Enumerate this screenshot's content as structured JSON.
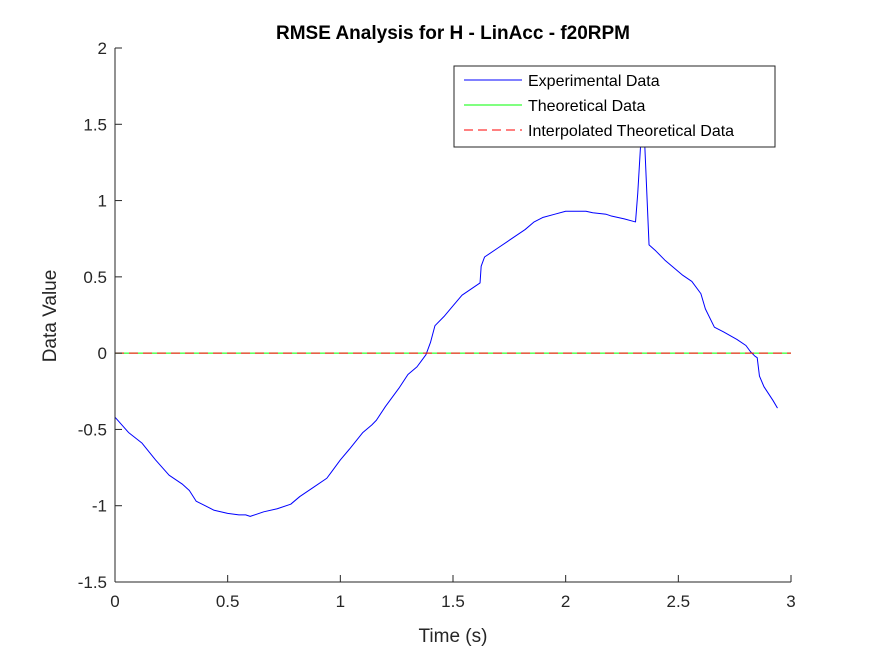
{
  "chart_data": {
    "type": "line",
    "title": "RMSE Analysis for H - LinAcc - f20RPM",
    "xlabel": "Time (s)",
    "ylabel": "Data Value",
    "xlim": [
      0,
      3
    ],
    "ylim": [
      -1.5,
      2
    ],
    "xticks": [
      0,
      0.5,
      1,
      1.5,
      2,
      2.5,
      3
    ],
    "xtick_labels": [
      "0",
      "0.5",
      "1",
      "1.5",
      "2",
      "2.5",
      "3"
    ],
    "yticks": [
      -1.5,
      -1,
      -0.5,
      0,
      0.5,
      1,
      1.5,
      2
    ],
    "ytick_labels": [
      "-1.5",
      "-1",
      "-0.5",
      "0",
      "0.5",
      "1",
      "1.5",
      "2"
    ],
    "grid": false,
    "legend_position": "top-right",
    "series": [
      {
        "name": "Experimental Data",
        "color": "#0000ff",
        "style": "solid",
        "x": [
          0,
          0.03,
          0.06,
          0.12,
          0.18,
          0.24,
          0.3,
          0.33,
          0.36,
          0.4,
          0.44,
          0.5,
          0.55,
          0.58,
          0.6,
          0.66,
          0.72,
          0.78,
          0.82,
          0.88,
          0.94,
          0.96,
          1.0,
          1.04,
          1.1,
          1.14,
          1.16,
          1.2,
          1.24,
          1.26,
          1.3,
          1.34,
          1.36,
          1.38,
          1.4,
          1.42,
          1.46,
          1.5,
          1.54,
          1.58,
          1.62,
          1.625,
          1.64,
          1.7,
          1.76,
          1.82,
          1.86,
          1.9,
          1.95,
          2.0,
          2.05,
          2.09,
          2.12,
          2.18,
          2.2,
          2.26,
          2.31,
          2.32,
          2.34,
          2.35,
          2.37,
          2.4,
          2.44,
          2.48,
          2.52,
          2.56,
          2.6,
          2.62,
          2.66,
          2.7,
          2.76,
          2.8,
          2.82,
          2.84,
          2.85,
          2.86,
          2.88,
          2.92,
          2.94
        ],
        "y": [
          -0.42,
          -0.47,
          -0.52,
          -0.59,
          -0.7,
          -0.8,
          -0.86,
          -0.9,
          -0.97,
          -1.0,
          -1.03,
          -1.05,
          -1.06,
          -1.06,
          -1.07,
          -1.04,
          -1.02,
          -0.99,
          -0.94,
          -0.88,
          -0.82,
          -0.78,
          -0.7,
          -0.63,
          -0.52,
          -0.47,
          -0.44,
          -0.35,
          -0.27,
          -0.23,
          -0.14,
          -0.09,
          -0.05,
          -0.01,
          0.07,
          0.18,
          0.24,
          0.31,
          0.38,
          0.42,
          0.46,
          0.57,
          0.63,
          0.69,
          0.75,
          0.81,
          0.86,
          0.89,
          0.91,
          0.93,
          0.93,
          0.93,
          0.92,
          0.91,
          0.9,
          0.88,
          0.86,
          1.05,
          1.55,
          1.4,
          0.71,
          0.67,
          0.61,
          0.56,
          0.51,
          0.47,
          0.39,
          0.29,
          0.17,
          0.14,
          0.09,
          0.05,
          0.01,
          -0.02,
          -0.03,
          -0.15,
          -0.22,
          -0.31,
          -0.36
        ]
      },
      {
        "name": "Theoretical Data",
        "color": "#00ff00",
        "style": "solid",
        "x": [
          0,
          3
        ],
        "y": [
          0,
          0
        ]
      },
      {
        "name": "Interpolated Theoretical Data",
        "color": "#ff0000",
        "style": "dashed",
        "x": [
          0,
          3
        ],
        "y": [
          0,
          0
        ]
      }
    ]
  }
}
